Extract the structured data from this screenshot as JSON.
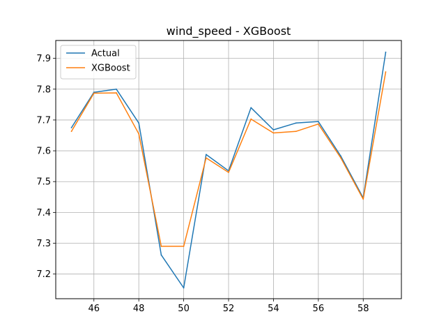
{
  "chart_data": {
    "type": "line",
    "title": "wind_speed - XGBoost",
    "xlabel": "",
    "ylabel": "",
    "x": [
      45,
      46,
      47,
      48,
      49,
      50,
      51,
      52,
      53,
      54,
      55,
      56,
      57,
      58,
      59
    ],
    "series": [
      {
        "name": "Actual",
        "color": "#1f77b4",
        "values": [
          7.675,
          7.79,
          7.8,
          7.69,
          7.262,
          7.155,
          7.588,
          7.535,
          7.74,
          7.668,
          7.69,
          7.695,
          7.583,
          7.447,
          7.92
        ]
      },
      {
        "name": "XGBoost",
        "color": "#ff7f0e",
        "values": [
          7.663,
          7.787,
          7.788,
          7.655,
          7.29,
          7.29,
          7.577,
          7.53,
          7.703,
          7.658,
          7.663,
          7.687,
          7.577,
          7.443,
          7.856
        ]
      }
    ],
    "xlim": [
      44.3,
      59.7
    ],
    "ylim": [
      7.12,
      7.958
    ],
    "xticks": [
      46,
      48,
      50,
      52,
      54,
      56,
      58
    ],
    "yticks": [
      7.2,
      7.3,
      7.4,
      7.5,
      7.6,
      7.7,
      7.8,
      7.9
    ],
    "xtick_labels": [
      "46",
      "48",
      "50",
      "52",
      "54",
      "56",
      "58"
    ],
    "ytick_labels": [
      "7.2",
      "7.3",
      "7.4",
      "7.5",
      "7.6",
      "7.7",
      "7.8",
      "7.9"
    ],
    "grid": true,
    "legend_position": "top-left"
  }
}
